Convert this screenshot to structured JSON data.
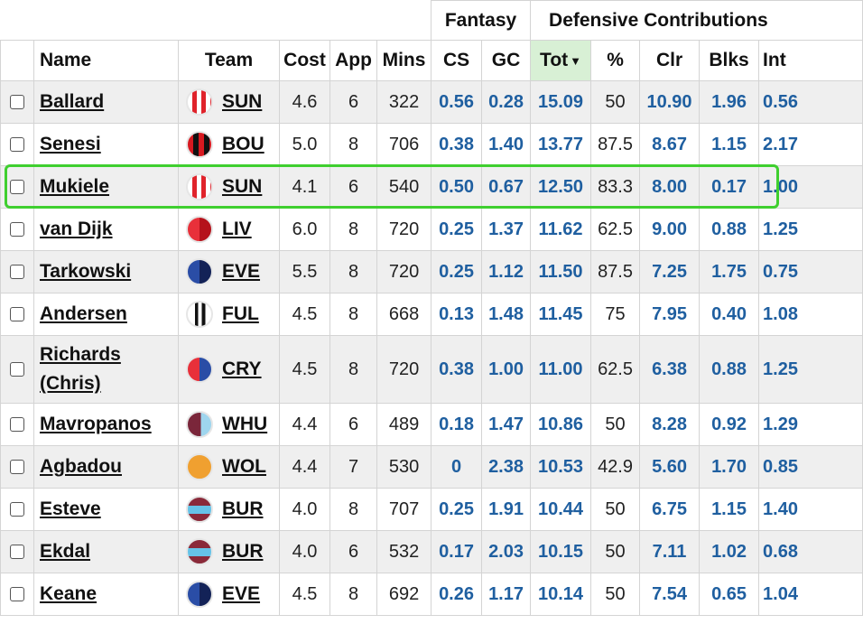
{
  "header": {
    "groups": {
      "fantasy": "Fantasy",
      "defensive": "Defensive Contributions"
    },
    "columns": {
      "name": "Name",
      "team": "Team",
      "cost": "Cost",
      "app": "App",
      "mins": "Mins",
      "cs": "CS",
      "gc": "GC",
      "tot": "Tot",
      "pct": "%",
      "clr": "Clr",
      "blks": "Blks",
      "int": "Int"
    },
    "sort_indicator": "▼"
  },
  "highlighted_row": "Mukiele",
  "badge_styles": {
    "SUN": "repeating-linear-gradient(90deg,#ffffff 0 5px,#e0232b 5px 10px)",
    "BOU": "repeating-linear-gradient(90deg,#d71920 0 6px,#111111 6px 12px)",
    "LIV": "linear-gradient(90deg,#e8303a 50%,#b5121b 50%)",
    "EVE": "linear-gradient(90deg,#2a4da6 50%,#132257 50%)",
    "FUL": "linear-gradient(90deg,#ffffff 0 30%,#111111 30% 45%,#ffffff 45% 60%,#111111 60% 75%,#ffffff 75%)",
    "CRY": "linear-gradient(90deg,#e8303a 50%,#2a4da6 50%)",
    "WHU": "linear-gradient(90deg,#7a263a 0 55%,#9ed5ee 55%)",
    "WOL": "#f0a030",
    "BUR": "linear-gradient(180deg,#8a2a3a 0 35%,#66c3e8 35% 70%,#8a2a3a 70%)"
  },
  "rows": [
    {
      "name": "Ballard",
      "team": "SUN",
      "cost": "4.6",
      "app": "6",
      "mins": "322",
      "cs": "0.56",
      "gc": "0.28",
      "tot": "15.09",
      "pct": "50",
      "clr": "10.90",
      "blks": "1.96",
      "int": "0.56"
    },
    {
      "name": "Senesi",
      "team": "BOU",
      "cost": "5.0",
      "app": "8",
      "mins": "706",
      "cs": "0.38",
      "gc": "1.40",
      "tot": "13.77",
      "pct": "87.5",
      "clr": "8.67",
      "blks": "1.15",
      "int": "2.17"
    },
    {
      "name": "Mukiele",
      "team": "SUN",
      "cost": "4.1",
      "app": "6",
      "mins": "540",
      "cs": "0.50",
      "gc": "0.67",
      "tot": "12.50",
      "pct": "83.3",
      "clr": "8.00",
      "blks": "0.17",
      "int": "1.00"
    },
    {
      "name": "van Dijk",
      "team": "LIV",
      "cost": "6.0",
      "app": "8",
      "mins": "720",
      "cs": "0.25",
      "gc": "1.37",
      "tot": "11.62",
      "pct": "62.5",
      "clr": "9.00",
      "blks": "0.88",
      "int": "1.25"
    },
    {
      "name": "Tarkowski",
      "team": "EVE",
      "cost": "5.5",
      "app": "8",
      "mins": "720",
      "cs": "0.25",
      "gc": "1.12",
      "tot": "11.50",
      "pct": "87.5",
      "clr": "7.25",
      "blks": "1.75",
      "int": "0.75"
    },
    {
      "name": "Andersen",
      "team": "FUL",
      "cost": "4.5",
      "app": "8",
      "mins": "668",
      "cs": "0.13",
      "gc": "1.48",
      "tot": "11.45",
      "pct": "75",
      "clr": "7.95",
      "blks": "0.40",
      "int": "1.08"
    },
    {
      "name": "Richards (Chris)",
      "team": "CRY",
      "cost": "4.5",
      "app": "8",
      "mins": "720",
      "cs": "0.38",
      "gc": "1.00",
      "tot": "11.00",
      "pct": "62.5",
      "clr": "6.38",
      "blks": "0.88",
      "int": "1.25"
    },
    {
      "name": "Mavropanos",
      "team": "WHU",
      "cost": "4.4",
      "app": "6",
      "mins": "489",
      "cs": "0.18",
      "gc": "1.47",
      "tot": "10.86",
      "pct": "50",
      "clr": "8.28",
      "blks": "0.92",
      "int": "1.29"
    },
    {
      "name": "Agbadou",
      "team": "WOL",
      "cost": "4.4",
      "app": "7",
      "mins": "530",
      "cs": "0",
      "gc": "2.38",
      "tot": "10.53",
      "pct": "42.9",
      "clr": "5.60",
      "blks": "1.70",
      "int": "0.85"
    },
    {
      "name": "Esteve",
      "team": "BUR",
      "cost": "4.0",
      "app": "8",
      "mins": "707",
      "cs": "0.25",
      "gc": "1.91",
      "tot": "10.44",
      "pct": "50",
      "clr": "6.75",
      "blks": "1.15",
      "int": "1.40"
    },
    {
      "name": "Ekdal",
      "team": "BUR",
      "cost": "4.0",
      "app": "6",
      "mins": "532",
      "cs": "0.17",
      "gc": "2.03",
      "tot": "10.15",
      "pct": "50",
      "clr": "7.11",
      "blks": "1.02",
      "int": "0.68"
    },
    {
      "name": "Keane",
      "team": "EVE",
      "cost": "4.5",
      "app": "8",
      "mins": "692",
      "cs": "0.26",
      "gc": "1.17",
      "tot": "10.14",
      "pct": "50",
      "clr": "7.54",
      "blks": "0.65",
      "int": "1.04"
    }
  ]
}
